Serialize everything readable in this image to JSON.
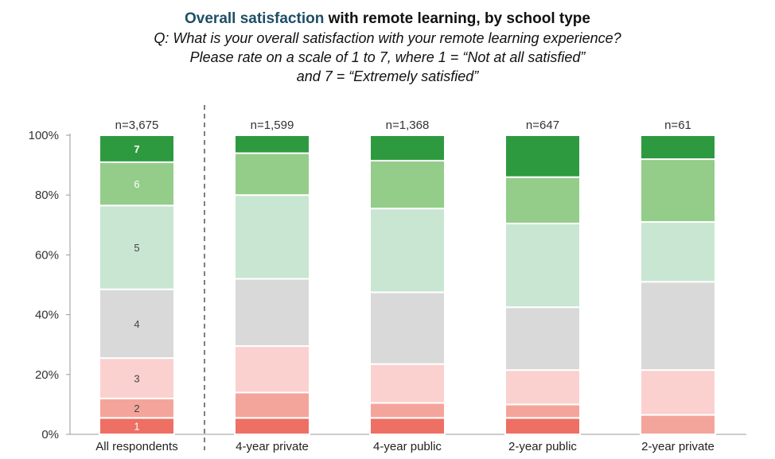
{
  "title": {
    "highlight": "Overall satisfaction",
    "rest": " with remote learning, by school type"
  },
  "subtitle_lines": [
    "Q: What is your overall satisfaction with your remote learning experience?",
    "Please rate on a scale of 1 to 7, where 1 = “Not at all satisfied”",
    "and 7 = “Extremely satisfied”"
  ],
  "chart_data": {
    "type": "bar",
    "stacked": true,
    "orientation": "vertical",
    "categories": [
      "All respondents",
      "4-year private",
      "4-year public",
      "2-year public",
      "2-year private"
    ],
    "sample_sizes": [
      "n=3,675",
      "n=1,599",
      "n=1,368",
      "n=647",
      "n=61"
    ],
    "series": [
      {
        "name": "1",
        "color": "#ee6f63",
        "values": [
          5.5,
          5.5,
          5.5,
          5.5,
          0
        ]
      },
      {
        "name": "2",
        "color": "#f4a59b",
        "values": [
          6.5,
          8.5,
          5.0,
          4.5,
          6.5
        ]
      },
      {
        "name": "3",
        "color": "#fad1cf",
        "values": [
          13.5,
          15.5,
          13.0,
          11.5,
          15.0
        ]
      },
      {
        "name": "4",
        "color": "#d9d9d9",
        "values": [
          23.0,
          22.5,
          24.0,
          21.0,
          29.5
        ]
      },
      {
        "name": "5",
        "color": "#c8e6d2",
        "values": [
          28.0,
          28.0,
          28.0,
          28.0,
          20.0
        ]
      },
      {
        "name": "6",
        "color": "#93cd89",
        "values": [
          14.5,
          14.0,
          16.0,
          15.5,
          21.0
        ]
      },
      {
        "name": "7",
        "color": "#2e9a40",
        "values": [
          9.0,
          6.0,
          8.5,
          14.0,
          8.0
        ]
      }
    ],
    "segment_labels_on": "All respondents",
    "y_ticks": [
      "0%",
      "20%",
      "40%",
      "60%",
      "80%",
      "100%"
    ],
    "ylim": [
      0,
      100
    ],
    "grid": false,
    "divider_after_category": "All respondents"
  }
}
